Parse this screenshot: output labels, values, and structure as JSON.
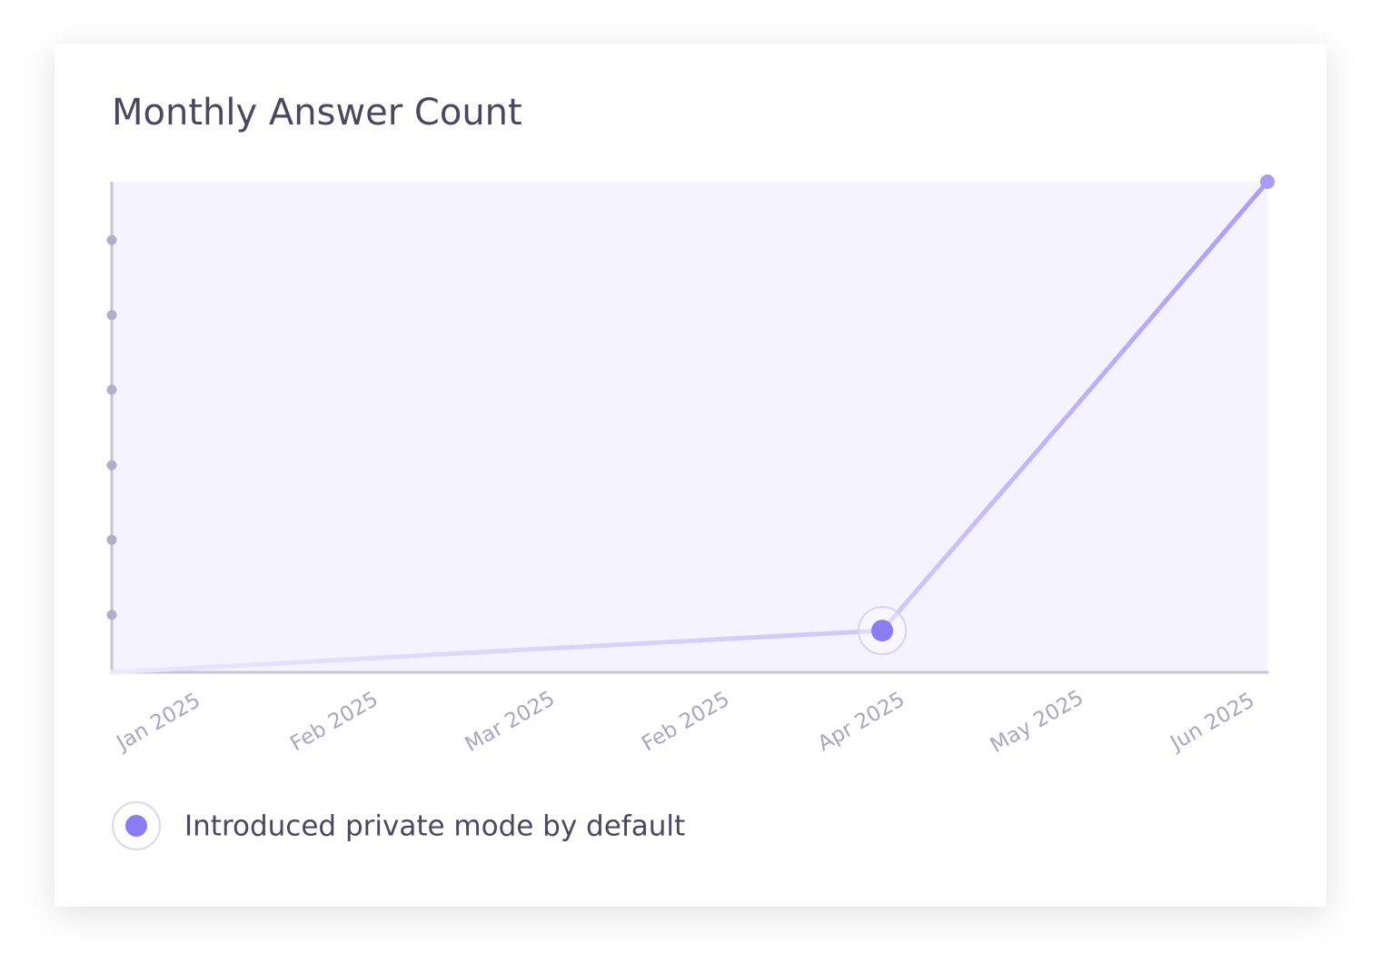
{
  "chart_data": {
    "type": "line",
    "title": "Monthly Answer Count",
    "categories": [
      "Jan 2025",
      "Feb 2025",
      "Mar 2025",
      "Feb 2025",
      "Apr 2025",
      "May 2025",
      "Jun 2025"
    ],
    "series": [
      {
        "color": "#a99ef7",
        "values": [
          0,
          2.1,
          4.3,
          6.4,
          8.5,
          54,
          100
        ]
      }
    ],
    "ylim": [
      0,
      100
    ],
    "yticks": [
      11.7,
      27,
      42.2,
      57.6,
      72.8,
      88.1
    ],
    "annotations": [
      {
        "x": "Apr 2025",
        "label": "Introduced private mode by default",
        "color": "#8b7cf6"
      }
    ]
  }
}
